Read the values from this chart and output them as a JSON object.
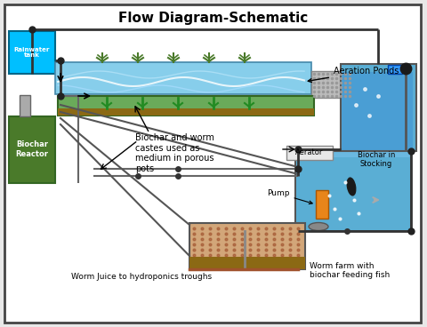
{
  "title": "Flow Diagram-Schematic",
  "bg_color": "#e8e8e8",
  "border_color": "#555555",
  "labels": {
    "title": "Flow Diagram-Schematic",
    "rainwater_tank": "Rainwater\ntank",
    "aeration_ponds": "Aeration Ponds",
    "biochar_annotation": "Biochar and worm\ncastes used as\nmedium in porous\npots",
    "biochar_in_stocking": "Biochar in\nStocking",
    "aerator": "Aerator",
    "pump": "Pump",
    "biochar_reactor": "Biochar\nReactor",
    "worm_juice": "Worm Juice to hydroponics troughs",
    "worm_farm": "Worm farm with\nbiochar feeding fish"
  },
  "colors": {
    "water_blue": "#87CEEB",
    "deep_blue": "#4a9ed4",
    "green_plant": "#6aaa5a",
    "dark_green": "#4a7a2a",
    "pipe_dark": "#333333",
    "pipe_light": "#888888",
    "gray": "#aaaaaa",
    "light_gray": "#cccccc",
    "orange": "#E8851A",
    "brown_worm": "#8B6914",
    "tan_worm": "#D2A679",
    "white": "#ffffff",
    "biochar_box_bg": "#e8e8e8",
    "tank_blue": "#5aaed4",
    "stocking_blue": "#6ab8e0"
  }
}
